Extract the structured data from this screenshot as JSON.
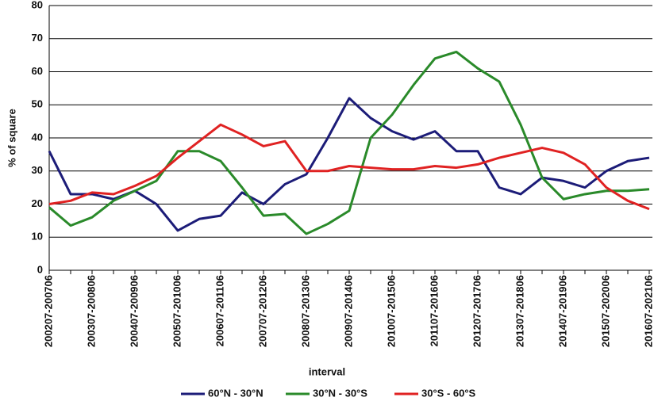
{
  "chart_data": {
    "type": "line",
    "xlabel": "interval",
    "ylabel": "% of square",
    "categories": [
      "200207-200706",
      null,
      "200307-200806",
      null,
      "200407-200906",
      null,
      "200507-201006",
      null,
      "200607-201106",
      null,
      "200707-201206",
      null,
      "200807-201306",
      null,
      "200907-201406",
      null,
      "201007-201506",
      null,
      "201107-201606",
      null,
      "201207-201706",
      null,
      "201307-201806",
      null,
      "201407-201906",
      null,
      "201507-202006",
      null,
      "201607-202106"
    ],
    "series": [
      {
        "name": "60°N - 30°N",
        "color": "#1c1c78",
        "values": [
          36,
          23,
          23,
          21.5,
          24,
          20,
          12,
          15.5,
          16.5,
          23.5,
          20,
          26,
          29,
          40,
          52,
          46,
          42,
          39.5,
          42,
          36,
          36,
          25,
          23,
          28,
          27,
          25,
          30,
          33,
          34
        ]
      },
      {
        "name": "30°N - 30°S",
        "color": "#2a8a2a",
        "values": [
          19,
          13.5,
          16,
          21,
          24,
          27,
          36,
          36,
          33,
          25,
          16.5,
          17,
          11,
          14,
          18,
          40,
          47,
          56,
          64,
          66,
          61,
          57,
          44,
          28,
          21.5,
          23,
          24,
          24,
          24.5
        ]
      },
      {
        "name": "30°S - 60°S",
        "color": "#e02222",
        "values": [
          20,
          21,
          23.5,
          23,
          25.5,
          28.5,
          34,
          39,
          44,
          41,
          37.5,
          39,
          30,
          30,
          31.5,
          31,
          30.5,
          30.5,
          31.5,
          31,
          32,
          34,
          35.5,
          37,
          35.5,
          32,
          25,
          21,
          18.5
        ]
      }
    ],
    "ylim": [
      0,
      80
    ],
    "yticks": [
      0,
      10,
      20,
      30,
      40,
      50,
      60,
      70,
      80
    ],
    "grid": true,
    "legend": "bottom"
  }
}
